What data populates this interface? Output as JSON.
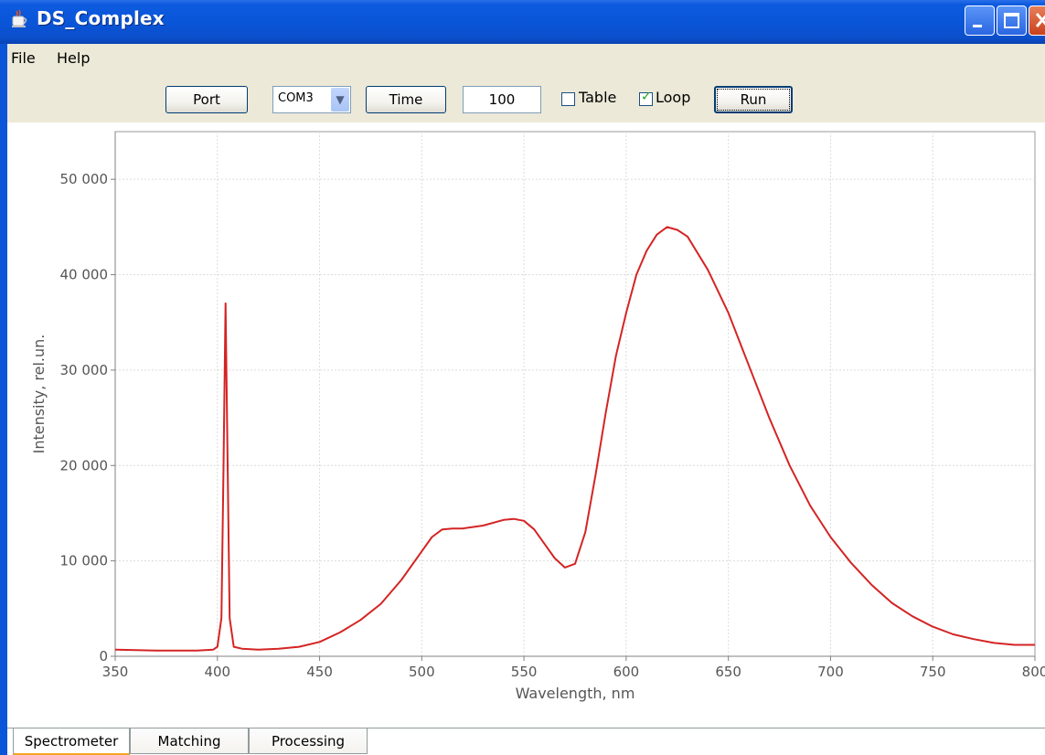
{
  "window": {
    "title": "DS_Complex",
    "icon": "java-cup-icon"
  },
  "menu": {
    "items": [
      {
        "label": "File"
      },
      {
        "label": "Help"
      }
    ]
  },
  "toolbar": {
    "port_label": "Port",
    "port_value": "COM3",
    "time_label": "Time",
    "time_value": "100",
    "table_label": "Table",
    "table_checked": false,
    "loop_label": "Loop",
    "loop_checked": true,
    "run_label": "Run"
  },
  "tabs": [
    {
      "label": "Spectrometer",
      "active": true
    },
    {
      "label": "Matching",
      "active": false
    },
    {
      "label": "Processing",
      "active": false
    }
  ],
  "colors": {
    "series": "#d42424",
    "grid": "#dcdcdc",
    "titlebar": "#0a55d8"
  },
  "chart_data": {
    "type": "line",
    "xlabel": "Wavelength, nm",
    "ylabel": "Intensity, rel.un.",
    "xlim": [
      350,
      800
    ],
    "ylim": [
      0,
      55000
    ],
    "xticks": [
      350,
      400,
      450,
      500,
      550,
      600,
      650,
      700,
      750,
      800
    ],
    "yticks": [
      0,
      10000,
      20000,
      30000,
      40000,
      50000
    ],
    "ytick_labels": [
      "0",
      "10 000",
      "20 000",
      "30 000",
      "40 000",
      "50 000"
    ],
    "grid": true,
    "series": [
      {
        "x": [
          350,
          370,
          390,
          398,
          400,
          402,
          403,
          404,
          405,
          406,
          408,
          412,
          420,
          430,
          440,
          450,
          460,
          470,
          480,
          490,
          500,
          505,
          510,
          515,
          520,
          530,
          540,
          545,
          550,
          555,
          560,
          565,
          570,
          575,
          580,
          585,
          590,
          595,
          600,
          605,
          610,
          615,
          620,
          625,
          630,
          640,
          650,
          660,
          670,
          680,
          690,
          700,
          710,
          720,
          730,
          740,
          750,
          760,
          770,
          780,
          790,
          800
        ],
        "y": [
          700,
          600,
          600,
          700,
          1000,
          4000,
          20000,
          37000,
          20000,
          4000,
          1000,
          800,
          700,
          800,
          1000,
          1500,
          2500,
          3800,
          5500,
          8000,
          11000,
          12500,
          13300,
          13400,
          13400,
          13700,
          14300,
          14400,
          14200,
          13300,
          11800,
          10300,
          9300,
          9700,
          13000,
          19000,
          25500,
          31500,
          36000,
          40000,
          42500,
          44200,
          45000,
          44700,
          44000,
          40500,
          36000,
          30500,
          25000,
          20000,
          15800,
          12500,
          9800,
          7500,
          5600,
          4200,
          3100,
          2300,
          1800,
          1400,
          1200,
          1200
        ]
      }
    ]
  }
}
